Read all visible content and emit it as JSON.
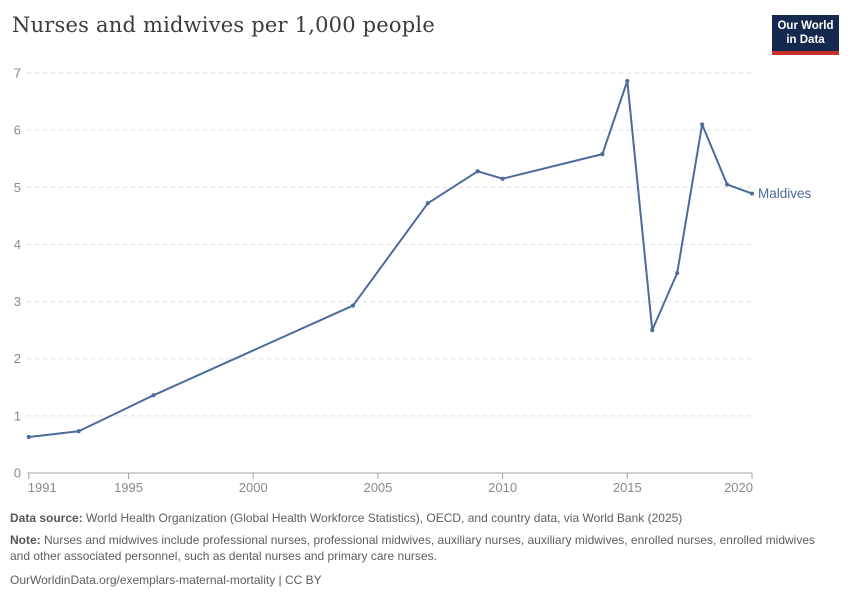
{
  "header": {
    "title": "Nurses and midwives per 1,000 people",
    "logo": {
      "line1": "Our World",
      "line2": "in Data"
    }
  },
  "chart_data": {
    "type": "line",
    "title": "Nurses and midwives per 1,000 people",
    "series": [
      {
        "name": "Maldives",
        "x": [
          1991,
          1993,
          1996,
          2004,
          2007,
          2009,
          2010,
          2014,
          2015,
          2016,
          2017,
          2018,
          2019,
          2020
        ],
        "values": [
          0.63,
          0.73,
          1.36,
          2.93,
          4.72,
          5.28,
          5.15,
          5.58,
          6.86,
          2.5,
          3.5,
          6.1,
          5.05,
          4.89
        ]
      }
    ],
    "end_label": "Maldives",
    "x_ticks": [
      1991,
      1995,
      2000,
      2005,
      2010,
      2015,
      2020
    ],
    "y_ticks": [
      0,
      1,
      2,
      3,
      4,
      5,
      6,
      7
    ],
    "xlim": [
      1991,
      2020
    ],
    "ylim": [
      0,
      7
    ],
    "xlabel": "",
    "ylabel": "",
    "grid": "horizontal-dashed",
    "legend": "line-end-label"
  },
  "colors": {
    "line": "#4c6a9c",
    "grid": "#dedede",
    "axis": "#a3a3a3",
    "tick_label": "#8a8a8a",
    "title": "#3d3a3a",
    "entity_label": "#4c6a9c",
    "logo_bg": "#15294f",
    "logo_red": "#c5322d",
    "footer_text": "#5e5e5e"
  },
  "footer": {
    "data_source_label": "Data source:",
    "data_source_text": " World Health Organization (Global Health Workforce Statistics), OECD, and country data, via World Bank (2025)",
    "note_label": "Note:",
    "note_text": " Nurses and midwives include professional nurses, professional midwives, auxiliary nurses, auxiliary midwives, enrolled nurses, enrolled midwives and other associated personnel, such as dental nurses and primary care nurses.",
    "license_line": "OurWorldinData.org/exemplars-maternal-mortality | CC BY"
  }
}
